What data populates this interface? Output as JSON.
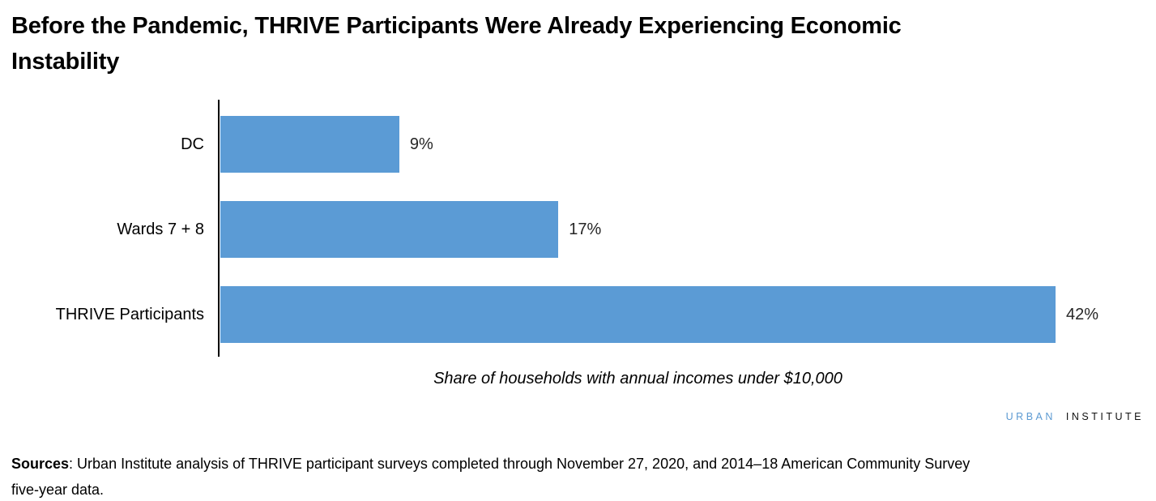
{
  "title": {
    "line1": "Before the Pandemic, THRIVE Participants Were Already Experiencing Economic",
    "line2": "Instability"
  },
  "chart_data": {
    "type": "bar",
    "orientation": "horizontal",
    "categories": [
      "DC",
      "Wards 7 + 8",
      "THRIVE Participants"
    ],
    "values": [
      9,
      17,
      42
    ],
    "value_labels": [
      "9%",
      "17%",
      "42%"
    ],
    "series_name": "Share of households with annual incomes under $10,000",
    "xlabel": "Share of households with annual incomes under $10,000",
    "xlim": [
      0,
      42
    ],
    "bar_color": "#5b9bd5",
    "axis_color": "#000000",
    "grid": false,
    "legend": "none"
  },
  "logo": {
    "part1": "URBAN",
    "part2": "INSTITUTE",
    "part1_color": "#5c9ad2",
    "part2_color": "#111111"
  },
  "sources": {
    "label": "Sources",
    "line1": ": Urban Institute analysis of THRIVE participant surveys completed through November 27, 2020, and 2014–18 American Community Survey",
    "line2": "five-year data."
  }
}
